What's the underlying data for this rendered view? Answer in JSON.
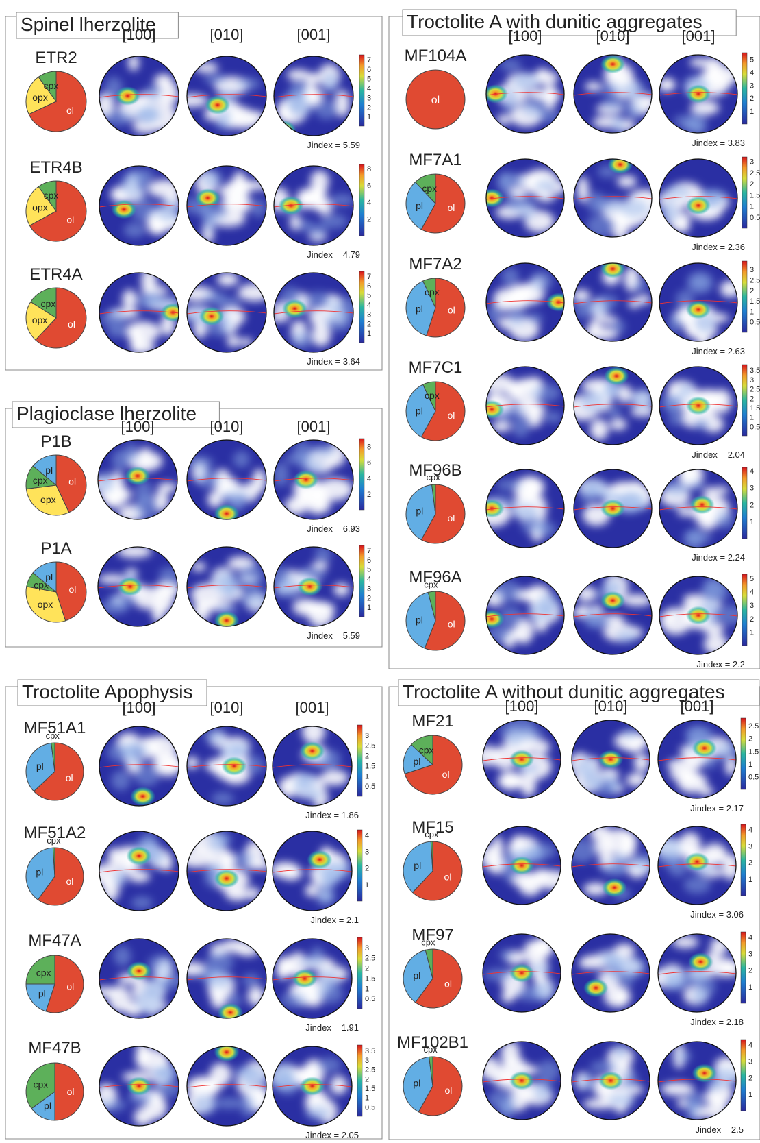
{
  "poles": [
    "[100]",
    "[010]",
    "[001]"
  ],
  "jindex_prefix": "Jindex = ",
  "colors": {
    "ol": "#e04a32",
    "opx": "#ffe35a",
    "cpx": "#5db05a",
    "pl": "#62aee4",
    "frame": "#888888",
    "text": "#222222"
  },
  "icon_names": [
    "pole-figure-icon",
    "modal-pie-icon",
    "colorbar-icon"
  ],
  "groups": [
    {
      "title": "Spinel lherzolite",
      "samples": [
        {
          "name": "ETR2",
          "jindex": "5.59",
          "ticks": [
            "7",
            "6",
            "5",
            "4",
            "3",
            "2",
            "1"
          ],
          "max": 7.5,
          "modes": [
            {
              "m": "ol",
              "v": 68
            },
            {
              "m": "opx",
              "v": 22
            },
            {
              "m": "cpx",
              "v": 10
            }
          ],
          "hot": [
            [
              0.35,
              0.5
            ],
            [
              0.38,
              0.62
            ],
            [
              0.1,
              0.95
            ]
          ]
        },
        {
          "name": "ETR4B",
          "jindex": "4.79",
          "ticks": [
            "8",
            "6",
            "4",
            "2"
          ],
          "max": 8.5,
          "modes": [
            {
              "m": "ol",
              "v": 67
            },
            {
              "m": "opx",
              "v": 23
            },
            {
              "m": "cpx",
              "v": 10
            }
          ],
          "hot": [
            [
              0.3,
              0.55
            ],
            [
              0.25,
              0.4
            ],
            [
              0.2,
              0.5
            ]
          ]
        },
        {
          "name": "ETR4A",
          "jindex": "3.64",
          "ticks": [
            "7",
            "6",
            "5",
            "4",
            "3",
            "2",
            "1"
          ],
          "max": 7.5,
          "modes": [
            {
              "m": "ol",
              "v": 62
            },
            {
              "m": "opx",
              "v": 22
            },
            {
              "m": "cpx",
              "v": 16
            }
          ],
          "hot": [
            [
              0.95,
              0.5
            ],
            [
              0.3,
              0.55
            ],
            [
              0.25,
              0.45
            ]
          ]
        }
      ]
    },
    {
      "title": "Plagioclase lherzolite",
      "samples": [
        {
          "name": "P1B",
          "jindex": "6.93",
          "ticks": [
            "8",
            "6",
            "4",
            "2"
          ],
          "max": 9,
          "modes": [
            {
              "m": "ol",
              "v": 43
            },
            {
              "m": "opx",
              "v": 30
            },
            {
              "m": "cpx",
              "v": 13
            },
            {
              "m": "pl",
              "v": 14
            }
          ],
          "hot": [
            [
              0.5,
              0.45
            ],
            [
              0.5,
              0.95
            ],
            [
              0.4,
              0.5
            ]
          ]
        },
        {
          "name": "P1A",
          "jindex": "5.59",
          "ticks": [
            "7",
            "6",
            "5",
            "4",
            "3",
            "2",
            "1"
          ],
          "max": 7.5,
          "modes": [
            {
              "m": "ol",
              "v": 45
            },
            {
              "m": "opx",
              "v": 33
            },
            {
              "m": "cpx",
              "v": 8
            },
            {
              "m": "pl",
              "v": 14
            }
          ],
          "hot": [
            [
              0.4,
              0.5
            ],
            [
              0.5,
              0.95
            ],
            [
              0.45,
              0.5
            ]
          ]
        }
      ]
    },
    {
      "title": "Troctolite Apophysis",
      "samples": [
        {
          "name": "MF51A1",
          "jindex": "1.86",
          "ticks": [
            "3",
            "2.5",
            "2",
            "1.5",
            "1",
            "0.5"
          ],
          "max": 3.5,
          "modes": [
            {
              "m": "ol",
              "v": 63
            },
            {
              "m": "pl",
              "v": 35
            },
            {
              "m": "cpx",
              "v": 2
            }
          ],
          "hot": [
            [
              0.55,
              0.9
            ],
            [
              0.6,
              0.5
            ],
            [
              0.5,
              0.3
            ]
          ]
        },
        {
          "name": "MF51A2",
          "jindex": "2.1",
          "ticks": [
            "4",
            "3",
            "2",
            "1"
          ],
          "max": 4.3,
          "modes": [
            {
              "m": "ol",
              "v": 60
            },
            {
              "m": "pl",
              "v": 39
            },
            {
              "m": "cpx",
              "v": 1
            }
          ],
          "hot": [
            [
              0.5,
              0.3
            ],
            [
              0.5,
              0.6
            ],
            [
              0.6,
              0.35
            ]
          ]
        },
        {
          "name": "MF47A",
          "jindex": "1.91",
          "ticks": [
            "3",
            "2.5",
            "2",
            "1.5",
            "1",
            "0.5"
          ],
          "max": 3.5,
          "modes": [
            {
              "m": "ol",
              "v": 55
            },
            {
              "m": "pl",
              "v": 20
            },
            {
              "m": "cpx",
              "v": 25
            }
          ],
          "hot": [
            [
              0.5,
              0.4
            ],
            [
              0.55,
              0.95
            ],
            [
              0.4,
              0.5
            ]
          ]
        },
        {
          "name": "MF47B",
          "jindex": "2.05",
          "ticks": [
            "3.5",
            "3",
            "2.5",
            "2",
            "1.5",
            "1",
            "0.5"
          ],
          "max": 3.8,
          "modes": [
            {
              "m": "ol",
              "v": 50
            },
            {
              "m": "pl",
              "v": 15
            },
            {
              "m": "cpx",
              "v": 35
            }
          ],
          "hot": [
            [
              0.5,
              0.5
            ],
            [
              0.5,
              0.05
            ],
            [
              0.5,
              0.5
            ]
          ]
        }
      ]
    },
    {
      "title": "Troctolite A with dunitic aggregates",
      "samples": [
        {
          "name": "MF104A",
          "jindex": "3.83",
          "ticks": [
            "5",
            "4",
            "3",
            "2",
            "1"
          ],
          "max": 5.5,
          "modes": [
            {
              "m": "ol",
              "v": 100
            }
          ],
          "hot": [
            [
              0.1,
              0.5
            ],
            [
              0.5,
              0.1
            ],
            [
              0.5,
              0.5
            ]
          ]
        },
        {
          "name": "MF7A1",
          "jindex": "2.36",
          "ticks": [
            "3",
            "2.5",
            "2",
            "1.5",
            "1",
            "0.5"
          ],
          "max": 3.2,
          "modes": [
            {
              "m": "ol",
              "v": 58
            },
            {
              "m": "pl",
              "v": 30
            },
            {
              "m": "cpx",
              "v": 12
            }
          ],
          "hot": [
            [
              0.05,
              0.5
            ],
            [
              0.6,
              0.05
            ],
            [
              0.5,
              0.6
            ]
          ]
        },
        {
          "name": "MF7A2",
          "jindex": "2.63",
          "ticks": [
            "3",
            "2.5",
            "2",
            "1.5",
            "1",
            "0.5"
          ],
          "max": 3.4,
          "modes": [
            {
              "m": "ol",
              "v": 55
            },
            {
              "m": "pl",
              "v": 38
            },
            {
              "m": "cpx",
              "v": 7
            }
          ],
          "hot": [
            [
              0.95,
              0.5
            ],
            [
              0.5,
              0.05
            ],
            [
              0.5,
              0.6
            ]
          ]
        },
        {
          "name": "MF7C1",
          "jindex": "2.04",
          "ticks": [
            "3.5",
            "3",
            "2.5",
            "2",
            "1.5",
            "1",
            "0.5"
          ],
          "max": 3.8,
          "modes": [
            {
              "m": "ol",
              "v": 58
            },
            {
              "m": "pl",
              "v": 35
            },
            {
              "m": "cpx",
              "v": 7
            }
          ],
          "hot": [
            [
              0.05,
              0.55
            ],
            [
              0.55,
              0.1
            ],
            [
              0.5,
              0.5
            ]
          ]
        },
        {
          "name": "MF96B",
          "jindex": "2.24",
          "ticks": [
            "4",
            "3",
            "2",
            "1"
          ],
          "max": 4.2,
          "modes": [
            {
              "m": "ol",
              "v": 58
            },
            {
              "m": "pl",
              "v": 40
            },
            {
              "m": "cpx",
              "v": 2
            }
          ],
          "hot": [
            [
              0.05,
              0.5
            ],
            [
              0.5,
              0.5
            ],
            [
              0.55,
              0.45
            ]
          ]
        },
        {
          "name": "MF96A",
          "jindex": "2.2",
          "ticks": [
            "5",
            "4",
            "3",
            "2",
            "1"
          ],
          "max": 5.3,
          "modes": [
            {
              "m": "ol",
              "v": 56
            },
            {
              "m": "pl",
              "v": 40
            },
            {
              "m": "cpx",
              "v": 4
            }
          ],
          "hot": [
            [
              0.05,
              0.55
            ],
            [
              0.5,
              0.3
            ],
            [
              0.5,
              0.5
            ]
          ]
        }
      ]
    },
    {
      "title": "Troctolite A without dunitic aggregates",
      "samples": [
        {
          "name": "MF21",
          "jindex": "2.17",
          "ticks": [
            "2.5",
            "2",
            "1.5",
            "1",
            "0.5"
          ],
          "max": 2.8,
          "modes": [
            {
              "m": "ol",
              "v": 70
            },
            {
              "m": "pl",
              "v": 17
            },
            {
              "m": "cpx",
              "v": 13
            }
          ],
          "hot": [
            [
              0.5,
              0.5
            ],
            [
              0.5,
              0.5
            ],
            [
              0.6,
              0.35
            ]
          ]
        },
        {
          "name": "MF15",
          "jindex": "3.06",
          "ticks": [
            "4",
            "3",
            "2",
            "1"
          ],
          "max": 4.3,
          "modes": [
            {
              "m": "ol",
              "v": 62
            },
            {
              "m": "pl",
              "v": 37
            },
            {
              "m": "cpx",
              "v": 1
            }
          ],
          "hot": [
            [
              0.5,
              0.5
            ],
            [
              0.55,
              0.8
            ],
            [
              0.5,
              0.45
            ]
          ]
        },
        {
          "name": "MF97",
          "jindex": "2.18",
          "ticks": [
            "4",
            "3",
            "2",
            "1"
          ],
          "max": 4.3,
          "modes": [
            {
              "m": "ol",
              "v": 60
            },
            {
              "m": "pl",
              "v": 36
            },
            {
              "m": "cpx",
              "v": 4
            }
          ],
          "hot": [
            [
              0.5,
              0.5
            ],
            [
              0.3,
              0.7
            ],
            [
              0.55,
              0.35
            ]
          ]
        },
        {
          "name": "MF102B1",
          "jindex": "2.5",
          "ticks": [
            "4",
            "3",
            "2",
            "1"
          ],
          "max": 4.3,
          "modes": [
            {
              "m": "ol",
              "v": 58
            },
            {
              "m": "pl",
              "v": 40
            },
            {
              "m": "cpx",
              "v": 2
            }
          ],
          "hot": [
            [
              0.5,
              0.5
            ],
            [
              0.5,
              0.5
            ],
            [
              0.6,
              0.4
            ]
          ]
        }
      ]
    }
  ]
}
